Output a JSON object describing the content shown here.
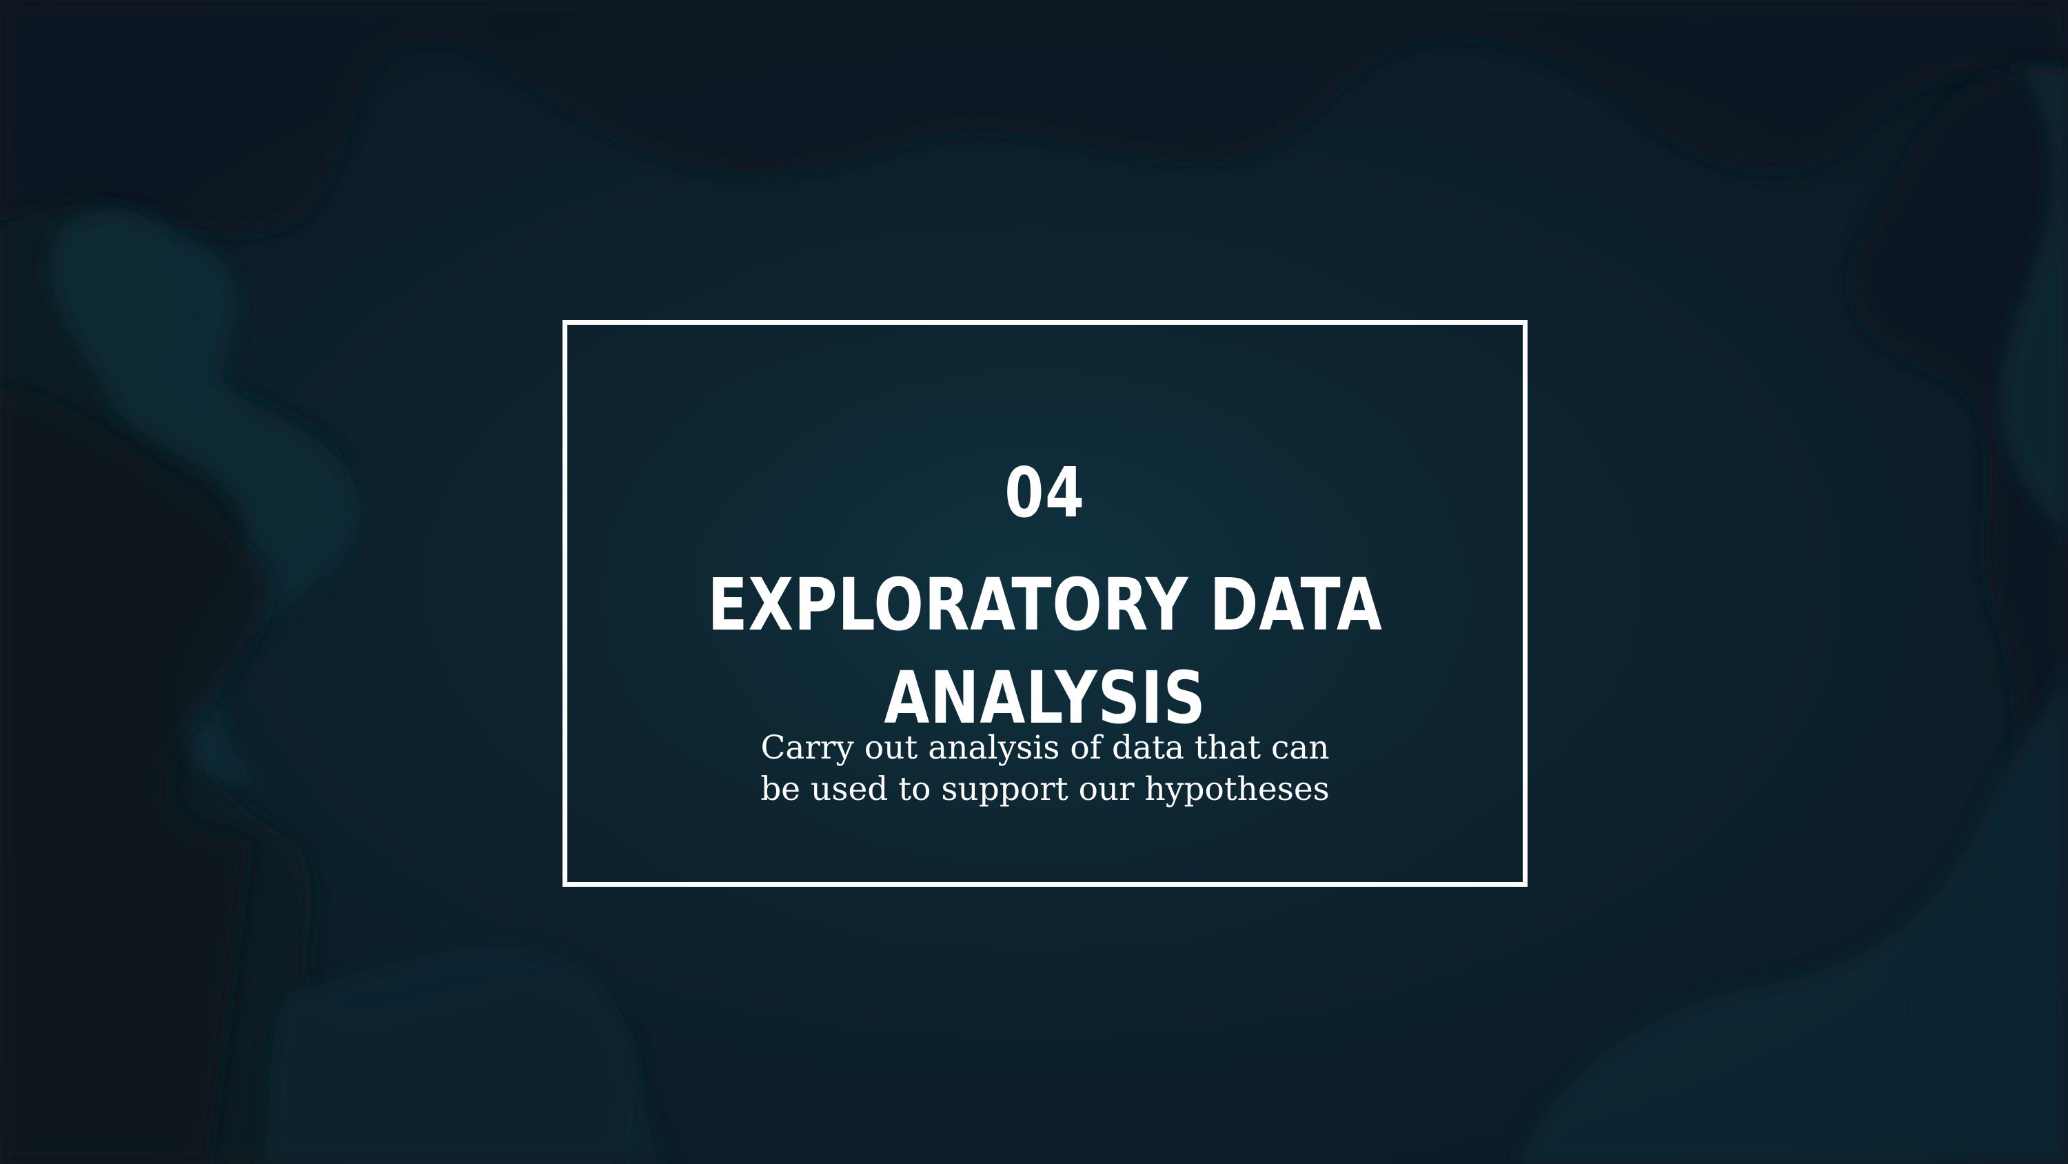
{
  "slide": {
    "number": "04",
    "title_line1": "EXPLORATORY DATA",
    "title_line2": "ANALYSIS",
    "subtitle_line1": "Carry out analysis of data that can",
    "subtitle_line2": "be used to support our hypotheses"
  },
  "colors": {
    "background": "#0d222d",
    "shape_dark": "#0a1820",
    "shape_teal": "#0e2d39",
    "text": "#ffffff",
    "frame": "#ffffff"
  }
}
